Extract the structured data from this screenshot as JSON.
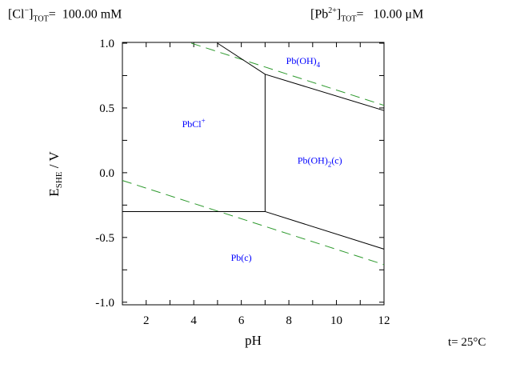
{
  "header": {
    "left_species": "Cl",
    "left_charge": "−",
    "left_sub": "TOT",
    "left_value": "100.00 mM",
    "right_species": "Pb",
    "right_charge": "2+",
    "right_sub": "TOT",
    "right_value": "10.00 μM"
  },
  "footer": {
    "temperature": "t= 25°C"
  },
  "chart_data": {
    "type": "line",
    "title": "",
    "xlabel": "pH",
    "ylabel": "E",
    "ylabel_sub": "SHE",
    "ylabel_unit": " / V",
    "xlim": [
      1,
      12
    ],
    "ylim": [
      -1.02,
      1.0
    ],
    "xticks": [
      2,
      4,
      6,
      8,
      10,
      12
    ],
    "xtick_labels": [
      "2",
      "4",
      "6",
      "8",
      "10",
      "12"
    ],
    "yticks": [
      1.0,
      0.5,
      0.0,
      -0.5,
      -1.0
    ],
    "ytick_labels": [
      "1.0",
      "0.5",
      "0.0",
      "-0.5",
      "-1.0"
    ],
    "grid": false,
    "boundaries": [
      {
        "points": [
          [
            1,
            -0.3
          ],
          [
            7,
            -0.3
          ]
        ],
        "color": "#000000"
      },
      {
        "points": [
          [
            7,
            -0.3
          ],
          [
            7,
            0.76
          ]
        ],
        "color": "#000000"
      },
      {
        "points": [
          [
            5,
            1.0
          ],
          [
            7,
            0.76
          ],
          [
            12,
            0.48
          ]
        ],
        "color": "#000000"
      },
      {
        "points": [
          [
            7,
            -0.3
          ],
          [
            12,
            -0.59
          ]
        ],
        "color": "#000000"
      }
    ],
    "water_lines": [
      {
        "points": [
          [
            3.9,
            1.0
          ],
          [
            12,
            0.52
          ]
        ],
        "color": "#2e9a2e",
        "dash": true
      },
      {
        "points": [
          [
            1,
            -0.06
          ],
          [
            12,
            -0.71
          ]
        ],
        "color": "#2e9a2e",
        "dash": true
      }
    ],
    "regions": [
      {
        "label": "PbCl",
        "sup": "+",
        "sub": "",
        "suffix": "",
        "x": 4.0,
        "y": 0.35
      },
      {
        "label": "Pb(OH)",
        "sup": "",
        "sub": "4",
        "suffix": "",
        "x": 8.6,
        "y": 0.84
      },
      {
        "label": "Pb(OH)",
        "sup": "",
        "sub": "2",
        "suffix": "(c)",
        "x": 9.3,
        "y": 0.07
      },
      {
        "label": "Pb(c)",
        "sup": "",
        "sub": "",
        "suffix": "",
        "x": 6.0,
        "y": -0.68
      }
    ],
    "label_color": "#0000ff"
  }
}
